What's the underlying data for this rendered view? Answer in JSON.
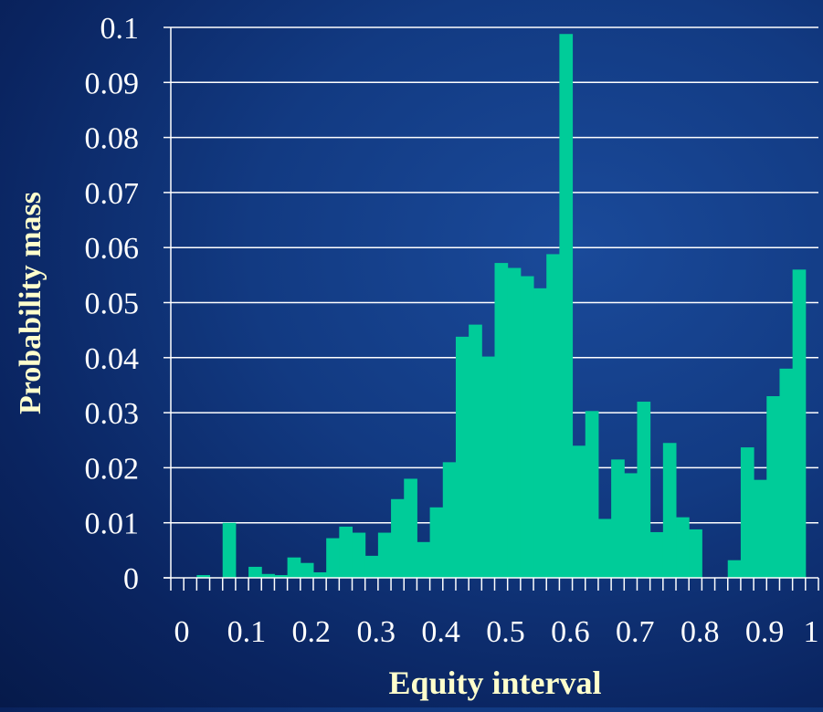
{
  "colors": {
    "background_top": "#0a2a6e",
    "bar": "#00cc99",
    "text": "#ffffff",
    "title_text": "#ffffcc",
    "grid": "#ffffff"
  },
  "chart_data": {
    "type": "bar",
    "xlabel": "Equity interval",
    "ylabel": "Probability mass",
    "xlim": [
      0,
      1
    ],
    "ylim": [
      0,
      0.1
    ],
    "y_ticks": [
      "0",
      "0.01",
      "0.02",
      "0.03",
      "0.04",
      "0.05",
      "0.06",
      "0.07",
      "0.08",
      "0.09",
      "0.1"
    ],
    "x_ticks": [
      "0",
      "0.1",
      "0.2",
      "0.3",
      "0.4",
      "0.5",
      "0.6",
      "0.7",
      "0.8",
      "0.9",
      "1"
    ],
    "grid": true,
    "bin_width": 0.02,
    "values": [
      0,
      0,
      0.0005,
      0,
      0.01,
      0,
      0.002,
      0.0007,
      0.0005,
      0.0037,
      0.0027,
      0.001,
      0.0072,
      0.0093,
      0.0082,
      0.004,
      0.0082,
      0.0143,
      0.018,
      0.0065,
      0.0128,
      0.021,
      0.0438,
      0.046,
      0.0402,
      0.0572,
      0.0563,
      0.0548,
      0.0526,
      0.0588,
      0.0988,
      0.024,
      0.0303,
      0.0107,
      0.0215,
      0.019,
      0.032,
      0.0083,
      0.0245,
      0.011,
      0.0088,
      0,
      0,
      0.0032,
      0.0237,
      0.0178,
      0.033,
      0.038,
      0.056,
      0
    ]
  }
}
